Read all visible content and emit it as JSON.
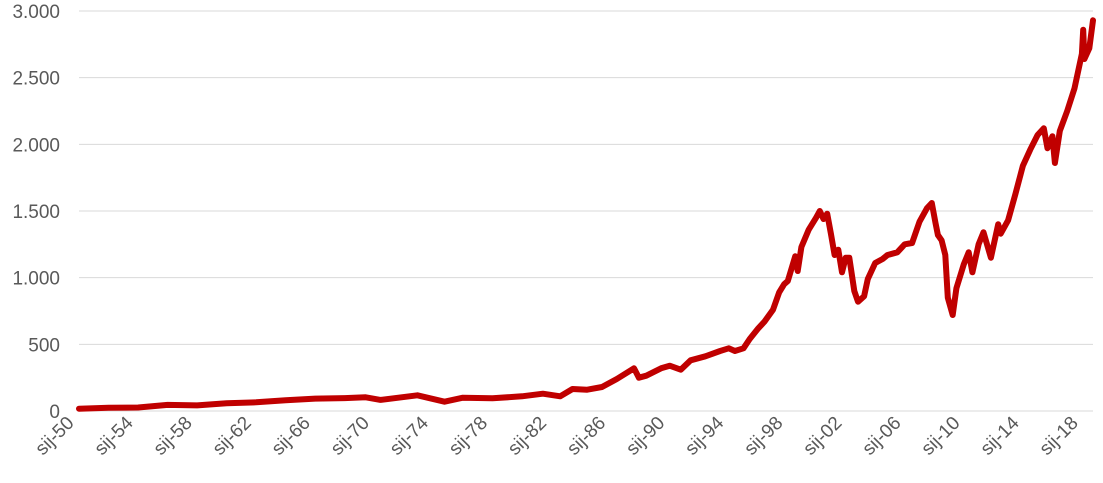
{
  "chart_data": {
    "type": "line",
    "title": "",
    "xlabel": "",
    "ylabel": "",
    "ylim": [
      0,
      3000
    ],
    "xlim": [
      "1950-01",
      "2018-09"
    ],
    "grid": "horizontal",
    "legend": "none",
    "y_ticks": [
      0,
      500,
      1000,
      1500,
      2000,
      2500,
      3000
    ],
    "y_tick_labels": [
      "0",
      "500",
      "1.000",
      "1.500",
      "2.000",
      "2.500",
      "3.000"
    ],
    "x_ticks": [
      "1950-01",
      "1954-01",
      "1958-01",
      "1962-01",
      "1966-01",
      "1970-01",
      "1974-01",
      "1978-01",
      "1982-01",
      "1986-01",
      "1990-01",
      "1994-01",
      "1998-01",
      "2002-01",
      "2006-01",
      "2010-01",
      "2014-01",
      "2018-01"
    ],
    "x_tick_labels": [
      "sij-50",
      "sij-54",
      "sij-58",
      "sij-62",
      "sij-66",
      "sij-70",
      "sij-74",
      "sij-78",
      "sij-82",
      "sij-86",
      "sij-90",
      "sij-94",
      "sij-98",
      "sij-02",
      "sij-06",
      "sij-10",
      "sij-14",
      "sij-18"
    ],
    "series": [
      {
        "color": "#c00000",
        "x": [
          "1950-01",
          "1952-01",
          "1954-01",
          "1956-01",
          "1958-01",
          "1960-01",
          "1962-01",
          "1964-01",
          "1966-01",
          "1968-01",
          "1969-06",
          "1970-06",
          "1972-12",
          "1974-10",
          "1976-01",
          "1978-01",
          "1980-01",
          "1981-06",
          "1982-08",
          "1983-06",
          "1984-06",
          "1985-06",
          "1986-06",
          "1987-08",
          "1987-12",
          "1988-06",
          "1989-06",
          "1990-01",
          "1990-10",
          "1991-06",
          "1992-06",
          "1993-06",
          "1994-01",
          "1994-06",
          "1995-01",
          "1995-06",
          "1996-01",
          "1996-06",
          "1997-01",
          "1997-06",
          "1997-10",
          "1998-01",
          "1998-07",
          "1998-09",
          "1998-12",
          "1999-06",
          "1999-12",
          "2000-03",
          "2000-06",
          "2000-09",
          "2000-12",
          "2001-03",
          "2001-06",
          "2001-09",
          "2001-12",
          "2002-03",
          "2002-07",
          "2002-10",
          "2003-03",
          "2003-06",
          "2003-12",
          "2004-06",
          "2004-10",
          "2005-06",
          "2005-12",
          "2006-06",
          "2006-12",
          "2007-06",
          "2007-10",
          "2008-01",
          "2008-03",
          "2008-06",
          "2008-09",
          "2008-11",
          "2009-03",
          "2009-06",
          "2009-12",
          "2010-04",
          "2010-07",
          "2010-12",
          "2011-04",
          "2011-10",
          "2012-04",
          "2012-06",
          "2012-12",
          "2013-06",
          "2013-12",
          "2014-06",
          "2014-12",
          "2015-05",
          "2015-08",
          "2015-12",
          "2016-02",
          "2016-06",
          "2016-12",
          "2017-06",
          "2017-12",
          "2018-01",
          "2018-02",
          "2018-06",
          "2018-09"
        ],
        "values": [
          17,
          24,
          26,
          46,
          42,
          58,
          65,
          80,
          93,
          97,
          103,
          83,
          118,
          70,
          100,
          95,
          110,
          130,
          110,
          165,
          160,
          180,
          240,
          320,
          250,
          265,
          320,
          340,
          310,
          380,
          410,
          450,
          470,
          450,
          470,
          540,
          620,
          670,
          760,
          890,
          950,
          975,
          1160,
          1050,
          1230,
          1360,
          1450,
          1500,
          1440,
          1480,
          1330,
          1170,
          1210,
          1040,
          1150,
          1150,
          900,
          820,
          860,
          990,
          1110,
          1140,
          1170,
          1190,
          1250,
          1260,
          1420,
          1520,
          1560,
          1410,
          1320,
          1280,
          1170,
          850,
          720,
          920,
          1100,
          1190,
          1040,
          1250,
          1340,
          1150,
          1400,
          1330,
          1430,
          1630,
          1840,
          1960,
          2070,
          2120,
          1970,
          2060,
          1860,
          2100,
          2250,
          2420,
          2680,
          2860,
          2640,
          2720,
          2930
        ]
      }
    ]
  }
}
